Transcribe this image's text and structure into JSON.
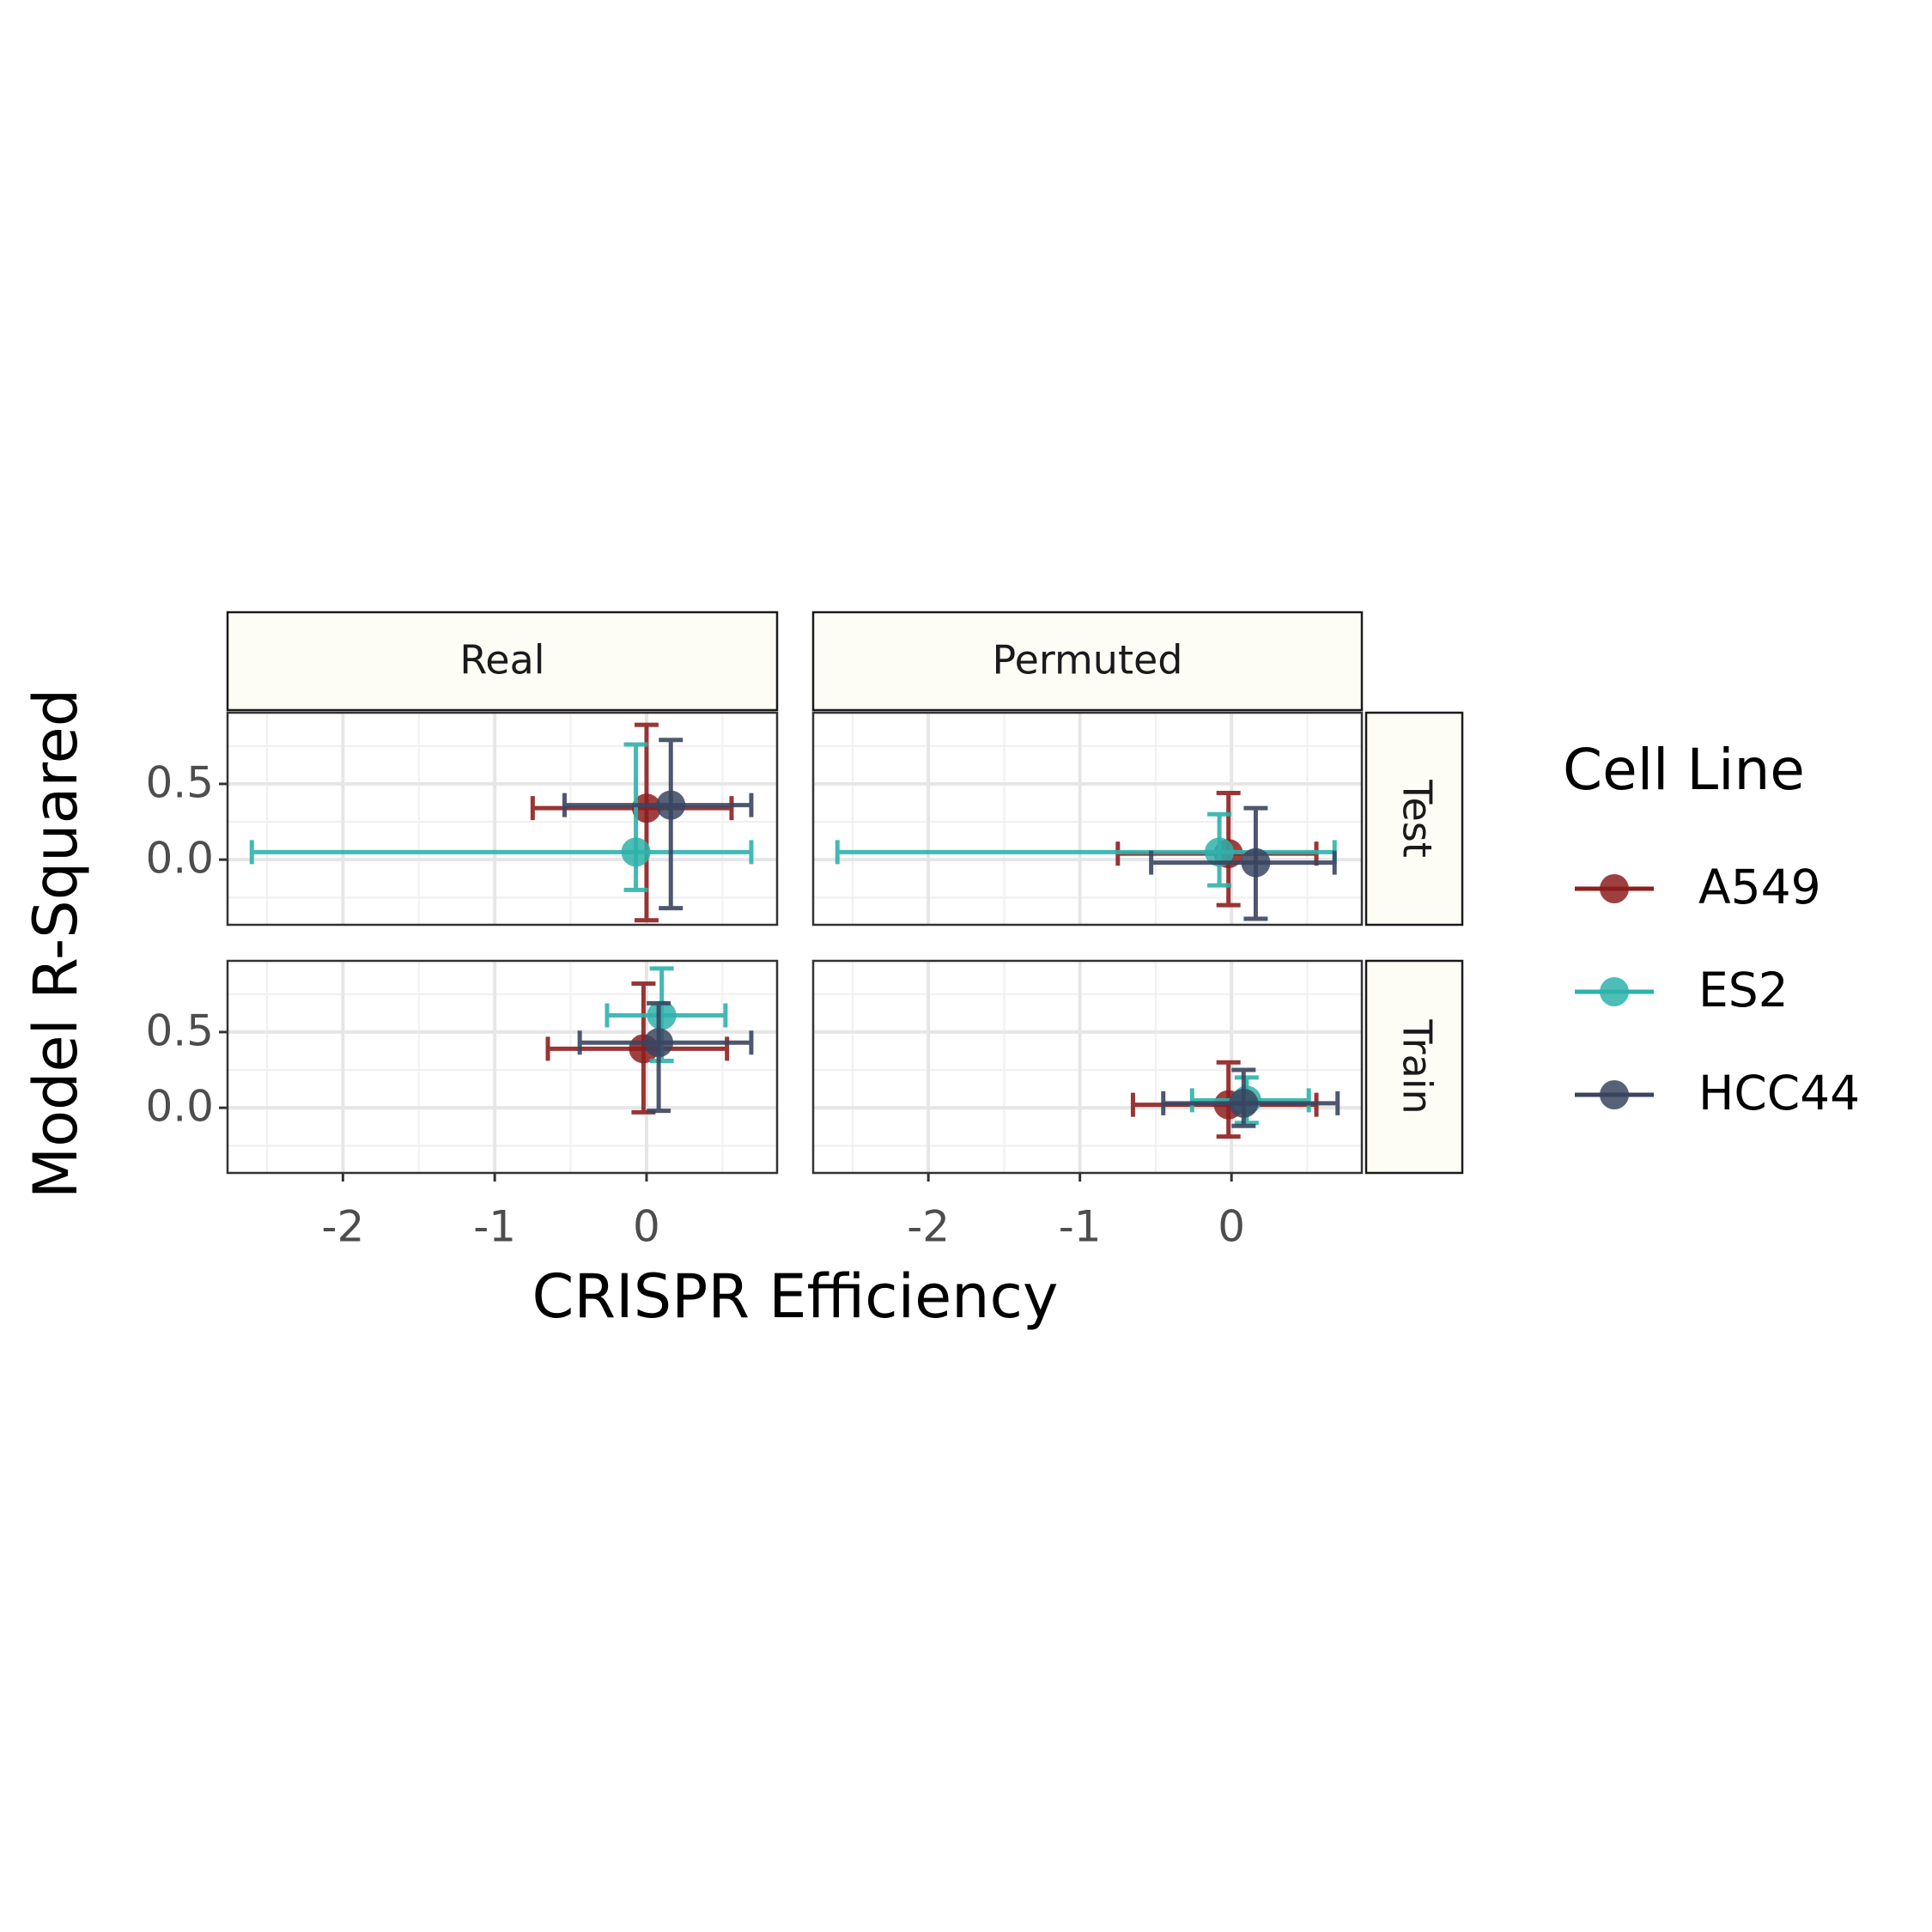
{
  "chart_data": {
    "type": "scatter",
    "x_label": "CRISPR Efficiency",
    "y_label": "Model R-Squared",
    "legend_title": "Cell Line",
    "columns": [
      "Real",
      "Permuted"
    ],
    "rows": [
      "Test",
      "Train"
    ],
    "xlim": [
      -2.76,
      0.86
    ],
    "ylim": [
      -0.43,
      0.97
    ],
    "xticks": [
      -2,
      -1,
      0
    ],
    "yticks": [
      {
        "value": 0,
        "label": "0.0"
      },
      0.5
    ],
    "xminor": [
      -2.5,
      -1.5,
      -0.5,
      0.5
    ],
    "yminor": [
      -0.25,
      0.25,
      0.75
    ],
    "grid": true,
    "series": [
      {
        "name": "A549",
        "color": "#8E1F1F"
      },
      {
        "name": "ES2",
        "color": "#2EB2AB"
      },
      {
        "name": "HCC44",
        "color": "#3A4560"
      }
    ],
    "panels": [
      [
        {
          "points": [
            {
              "x": 0.0,
              "y": 0.34,
              "xmin": -0.75,
              "xmax": 0.56,
              "ymin": -0.4,
              "ymax": 0.89
            },
            {
              "x": -0.07,
              "y": 0.05,
              "xmin": -2.6,
              "xmax": 0.69,
              "ymin": -0.2,
              "ymax": 0.76
            },
            {
              "x": 0.16,
              "y": 0.36,
              "xmin": -0.54,
              "xmax": 0.69,
              "ymin": -0.32,
              "ymax": 0.79
            }
          ]
        },
        {
          "points": [
            {
              "x": -0.02,
              "y": 0.04,
              "xmin": -0.75,
              "xmax": 0.56,
              "ymin": -0.3,
              "ymax": 0.44
            },
            {
              "x": -0.08,
              "y": 0.05,
              "xmin": -2.6,
              "xmax": 0.68,
              "ymin": -0.17,
              "ymax": 0.3
            },
            {
              "x": 0.16,
              "y": -0.02,
              "xmin": -0.53,
              "xmax": 0.68,
              "ymin": -0.39,
              "ymax": 0.34
            }
          ]
        }
      ],
      [
        {
          "points": [
            {
              "x": -0.02,
              "y": 0.39,
              "xmin": -0.65,
              "xmax": 0.53,
              "ymin": -0.03,
              "ymax": 0.82
            },
            {
              "x": 0.1,
              "y": 0.61,
              "xmin": -0.26,
              "xmax": 0.52,
              "ymin": 0.31,
              "ymax": 0.92
            },
            {
              "x": 0.08,
              "y": 0.43,
              "xmin": -0.44,
              "xmax": 0.69,
              "ymin": -0.02,
              "ymax": 0.69
            }
          ]
        },
        {
          "points": [
            {
              "x": -0.02,
              "y": 0.02,
              "xmin": -0.65,
              "xmax": 0.56,
              "ymin": -0.19,
              "ymax": 0.3
            },
            {
              "x": 0.1,
              "y": 0.05,
              "xmin": -0.26,
              "xmax": 0.51,
              "ymin": -0.1,
              "ymax": 0.2
            },
            {
              "x": 0.08,
              "y": 0.03,
              "xmin": -0.45,
              "xmax": 0.7,
              "ymin": -0.12,
              "ymax": 0.25
            }
          ]
        }
      ]
    ]
  }
}
